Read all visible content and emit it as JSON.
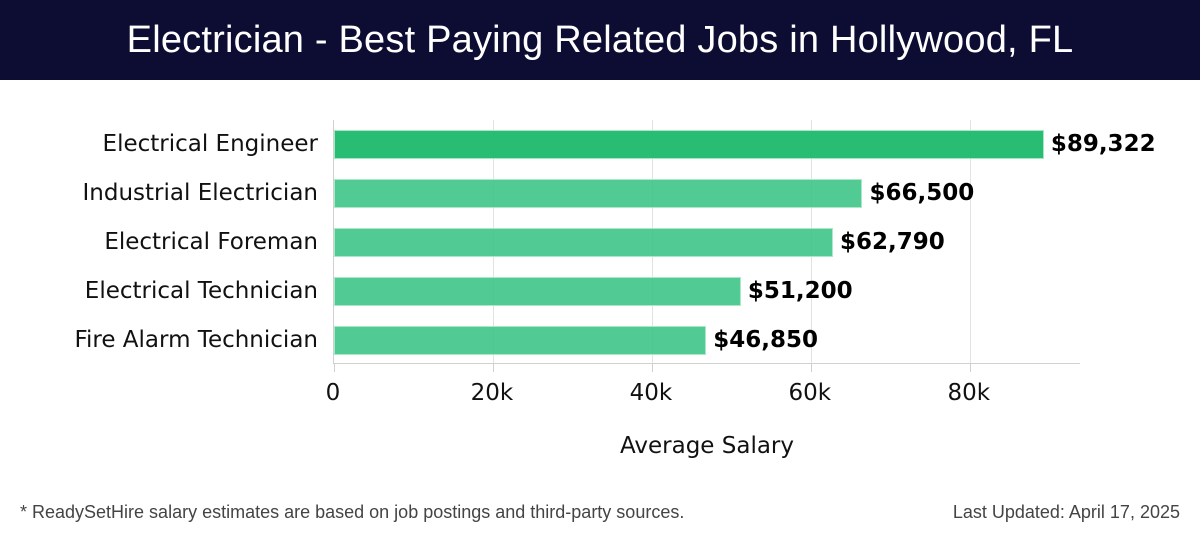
{
  "header": {
    "title": "Electrician - Best Paying Related Jobs in Hollywood, FL"
  },
  "footer": {
    "note": "* ReadySetHire salary estimates are based on job postings and third-party sources.",
    "last_updated": "Last Updated: April 17, 2025"
  },
  "colors": {
    "header_bg": "#0d0c33",
    "bar_top": "#2abf75",
    "bar": "#4cc990",
    "grid": "#e2e2e2"
  },
  "chart_data": {
    "type": "bar",
    "orientation": "horizontal",
    "title": "Electrician - Best Paying Related Jobs in Hollywood, FL",
    "xlabel": "Average Salary",
    "ylabel": "",
    "categories": [
      "Electrical Engineer",
      "Industrial Electrician",
      "Electrical Foreman",
      "Electrical Technician",
      "Fire Alarm Technician"
    ],
    "values": [
      89322,
      66500,
      62790,
      51200,
      46850
    ],
    "value_labels": [
      "$89,322",
      "$66,500",
      "$62,790",
      "$51,200",
      "$46,850"
    ],
    "xticks": [
      0,
      20000,
      40000,
      60000,
      80000
    ],
    "xtick_labels": [
      "0",
      "20k",
      "40k",
      "60k",
      "80k"
    ],
    "xlim": [
      0,
      94000
    ],
    "grid": true,
    "legend": null
  }
}
